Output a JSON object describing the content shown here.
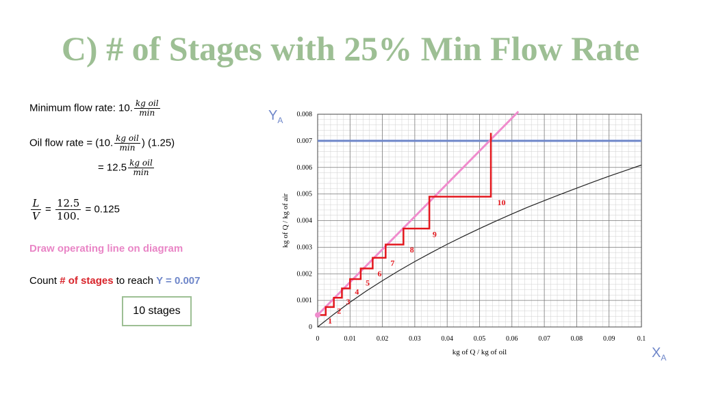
{
  "slide": {
    "title": "C) # of Stages with 25% Min Flow Rate",
    "min_flow": {
      "label": "Minimum flow rate: 10.",
      "unit_num": "kg oil",
      "unit_den": "min"
    },
    "oil_flow": {
      "label": "Oil flow rate = (10.",
      "unit_num": "kg oil",
      "unit_den": "min",
      "factor": ") (1.25)",
      "result_prefix": "= 12.5",
      "result_unit_num": "kg oil",
      "result_unit_den": "min"
    },
    "ratio": {
      "lhs_num": "L",
      "lhs_den": "V",
      "eq1": "=",
      "mid_num": "12.5",
      "mid_den": "100.",
      "result": "= 0.125"
    },
    "instruction": "Draw operating line on diagram",
    "count": {
      "prefix": "Count ",
      "highlight": "# of stages",
      "middle": " to reach ",
      "target": "Y = 0.007"
    },
    "answer": "10 stages",
    "y_axis_symbol": {
      "main": "Y",
      "sub": "A"
    },
    "x_axis_symbol": {
      "main": "X",
      "sub": "A"
    }
  },
  "chart_data": {
    "type": "line",
    "xlabel": "kg of Q / kg of oil",
    "ylabel": "kg of Q / kg of air",
    "xlim": [
      0,
      0.1
    ],
    "ylim": [
      0,
      0.008
    ],
    "x_ticks": [
      "0",
      "0.01",
      "0.02",
      "0.03",
      "0.04",
      "0.05",
      "0.06",
      "0.07",
      "0.08",
      "0.09",
      "0.1"
    ],
    "y_ticks": [
      "0",
      "0.001",
      "0.002",
      "0.003",
      "0.004",
      "0.005",
      "0.006",
      "0.007",
      "0.008"
    ],
    "grid": true,
    "colors": {
      "equilibrium": "#222222",
      "operating": "#f08ccd",
      "target": "#6e86c9",
      "stages": "#e3161c"
    },
    "equilibrium_curve": {
      "x": [
        0,
        0.005,
        0.01,
        0.015,
        0.02,
        0.025,
        0.03,
        0.035,
        0.04,
        0.045,
        0.05,
        0.055,
        0.06,
        0.065,
        0.07,
        0.075,
        0.08,
        0.085,
        0.09,
        0.095,
        0.1
      ],
      "y": [
        0,
        0.00048,
        0.00093,
        0.00135,
        0.00174,
        0.00211,
        0.00246,
        0.00279,
        0.00311,
        0.00341,
        0.0037,
        0.00398,
        0.00425,
        0.00451,
        0.00475,
        0.00499,
        0.00522,
        0.00545,
        0.00567,
        0.00588,
        0.00609
      ]
    },
    "operating_line": {
      "x": [
        0,
        0.062
      ],
      "y": [
        0.00045,
        0.0081
      ]
    },
    "target_line": {
      "y": 0.007
    },
    "stages": {
      "x": [
        0,
        0.0025,
        0.0025,
        0.005,
        0.005,
        0.0075,
        0.0075,
        0.01,
        0.01,
        0.0133,
        0.0133,
        0.017,
        0.017,
        0.021,
        0.021,
        0.0265,
        0.0265,
        0.0345,
        0.0345,
        0.0535,
        0.0535
      ],
      "y": [
        0.00045,
        0.00045,
        0.00075,
        0.00075,
        0.0011,
        0.0011,
        0.00145,
        0.00145,
        0.0018,
        0.0018,
        0.0022,
        0.0022,
        0.0026,
        0.0026,
        0.0031,
        0.0031,
        0.0037,
        0.0037,
        0.0049,
        0.0049,
        0.0073
      ]
    },
    "stage_labels": {
      "text": [
        "1",
        "2",
        "3",
        "4",
        "5",
        "6",
        "7",
        "8",
        "9",
        "10"
      ],
      "x": [
        0.0032,
        0.006,
        0.0088,
        0.0115,
        0.0148,
        0.0185,
        0.0225,
        0.0285,
        0.0355,
        0.0555
      ],
      "y": [
        0.00013,
        0.0005,
        0.00085,
        0.00122,
        0.00155,
        0.0019,
        0.0023,
        0.0028,
        0.00338,
        0.00458
      ]
    }
  }
}
